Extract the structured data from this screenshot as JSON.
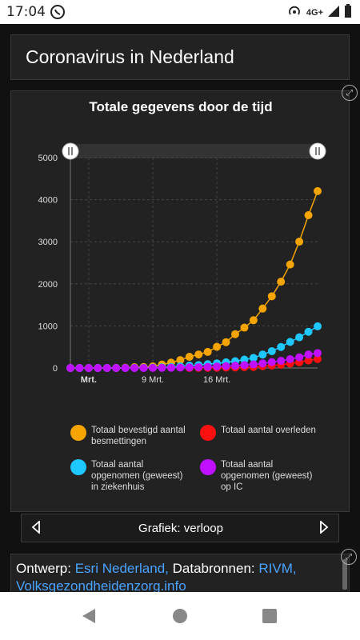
{
  "status_bar": {
    "time": "17:04",
    "network": "4G+"
  },
  "header": {
    "title": "Coronavirus in Nederland"
  },
  "panel": {
    "title": "Totale gegevens door de tijd"
  },
  "chart_data": {
    "type": "line",
    "title": "Totale gegevens door de tijd",
    "x_tick_labels": [
      "Mrt.",
      "9 Mrt.",
      "16 Mrt."
    ],
    "y_ticks": [
      0,
      1000,
      2000,
      3000,
      4000,
      5000
    ],
    "ylim": [
      0,
      5000
    ],
    "grid": true,
    "series": [
      {
        "name": "Totaal bevestigd aantal besmettingen",
        "color": "#f5a400",
        "values": [
          0,
          0,
          0,
          0,
          1,
          2,
          7,
          18,
          24,
          38,
          82,
          128,
          188,
          265,
          321,
          382,
          503,
          614,
          804,
          959,
          1135,
          1413,
          1705,
          2051,
          2460,
          3003,
          3631,
          4204
        ]
      },
      {
        "name": "Totaal aantal overleden",
        "color": "#ff1010",
        "values": [
          null,
          null,
          null,
          null,
          null,
          null,
          null,
          null,
          null,
          null,
          null,
          null,
          null,
          3,
          4,
          5,
          5,
          10,
          12,
          20,
          24,
          43,
          58,
          76,
          106,
          136,
          179,
          213
        ]
      },
      {
        "name": "Totaal aantal opgenomen (geweest) in ziekenhuis",
        "color": "#1ec8ff",
        "values": [
          0,
          0,
          0,
          0,
          0,
          0,
          0,
          2,
          5,
          9,
          16,
          27,
          40,
          56,
          70,
          90,
          110,
          135,
          162,
          200,
          240,
          320,
          400,
          500,
          620,
          730,
          860,
          990
        ]
      },
      {
        "name": "Totaal aantal opgenomen (geweest) op IC",
        "color": "#c010ff",
        "values": [
          0,
          0,
          0,
          0,
          0,
          0,
          0,
          0,
          1,
          2,
          4,
          6,
          10,
          14,
          20,
          27,
          36,
          45,
          56,
          70,
          85,
          110,
          140,
          170,
          210,
          255,
          320,
          355
        ]
      }
    ]
  },
  "legend": [
    {
      "label": "Totaal bevestigd aantal besmettingen",
      "color": "#f5a400"
    },
    {
      "label": "Totaal aantal overleden",
      "color": "#ff1010"
    },
    {
      "label": "Totaal aantal opgenomen (geweest) in ziekenhuis",
      "color": "#1ec8ff"
    },
    {
      "label": "Totaal aantal opgenomen (geweest) op IC",
      "color": "#c010ff"
    }
  ],
  "pager": {
    "label": "Grafiek: verloop"
  },
  "credits": {
    "ontwerp_label": "Ontwerp:",
    "ontwerp_value": "Esri Nederland,",
    "bronnen_label": "Databronnen:",
    "bronnen_value": "RIVM,",
    "line2": "Volksgezondheidenzorg.info"
  },
  "icons": {
    "expand": "expand-icon",
    "prev": "chevron-left-icon",
    "next": "chevron-right-icon"
  }
}
